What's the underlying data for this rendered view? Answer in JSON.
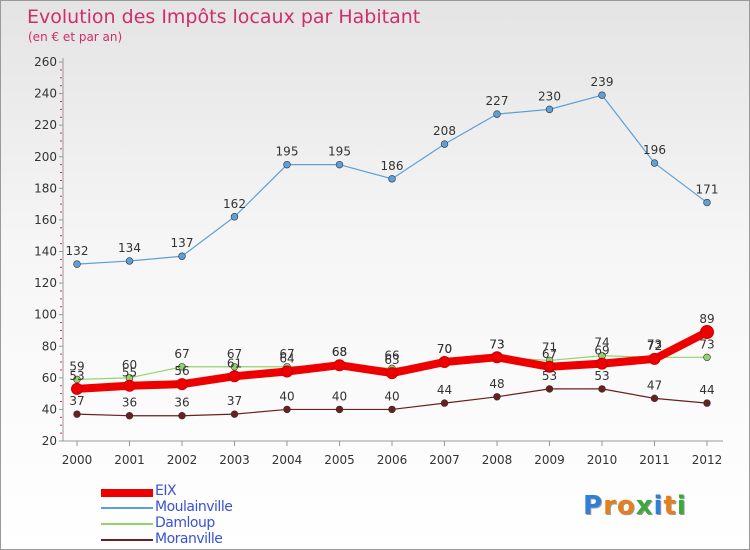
{
  "title": "Evolution des Impôts locaux par Habitant",
  "subtitle": "(en € et par an)",
  "brand": {
    "text": "Proxiti",
    "letters": [
      "P",
      "r",
      "o",
      "x",
      "i",
      "t",
      "i"
    ],
    "letter_colors": [
      "#2f7fd8",
      "#e57e1c",
      "#e57e1c",
      "#3aa83a",
      "#2f7fd8",
      "#e57e1c",
      "#3aa83a"
    ]
  },
  "chart_data": {
    "type": "line",
    "x": [
      "2000",
      "2001",
      "2002",
      "2003",
      "2004",
      "2005",
      "2006",
      "2007",
      "2008",
      "2009",
      "2010",
      "2011",
      "2012"
    ],
    "ylim": [
      20,
      260
    ],
    "yticks": [
      20,
      40,
      60,
      80,
      100,
      120,
      140,
      160,
      180,
      200,
      220,
      240,
      260
    ],
    "grid": false,
    "legend_position": "bottom-left",
    "series": [
      {
        "name": "Moranville",
        "color": "#6b1f1f",
        "values": [
          37,
          36,
          36,
          37,
          40,
          40,
          40,
          44,
          48,
          53,
          53,
          47,
          44
        ],
        "labels": [
          "37",
          "36",
          "36",
          "37",
          "40",
          "40",
          "40",
          "44",
          "48",
          "53",
          "53",
          "47",
          "44"
        ],
        "label_side": "above"
      },
      {
        "name": "Damloup",
        "color": "#93d36b",
        "values": [
          59,
          60,
          67,
          67,
          67,
          68,
          66,
          70,
          73,
          71,
          74,
          73,
          73
        ],
        "labels": [
          "59",
          "60",
          "67",
          "67",
          "67",
          "68",
          "66",
          "70",
          "73",
          "71",
          "74",
          "73",
          "73"
        ],
        "label_side": "above"
      },
      {
        "name": "EIX",
        "color": "#ee0000",
        "values": [
          53,
          55,
          56,
          61,
          64,
          68,
          63,
          70,
          73,
          67,
          69,
          72,
          89
        ],
        "labels": [
          "53",
          "55",
          "56",
          "61",
          "64",
          "68",
          "63",
          "70",
          "73",
          "67",
          "69",
          "72",
          "89"
        ],
        "label_side": "above"
      },
      {
        "name": "Moulainville",
        "color": "#5d9fd8",
        "values": [
          132,
          134,
          137,
          162,
          195,
          195,
          186,
          208,
          227,
          230,
          239,
          196,
          171
        ],
        "labels": [
          "132",
          "134",
          "137",
          "162",
          "195",
          "195",
          "186",
          "208",
          "227",
          "230",
          "239",
          "196",
          "171"
        ],
        "label_side": "above"
      }
    ]
  },
  "legend": [
    {
      "label": "EIX",
      "color": "#ee0000",
      "thick": true
    },
    {
      "label": "Moulainville",
      "color": "#5d9fd8",
      "thick": false
    },
    {
      "label": "Damloup",
      "color": "#93d36b",
      "thick": false
    },
    {
      "label": "Moranville",
      "color": "#6b1f1f",
      "thick": false
    }
  ]
}
